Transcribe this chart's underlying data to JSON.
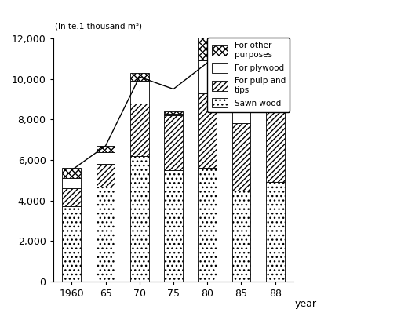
{
  "years": [
    "1960",
    "65",
    "70",
    "75",
    "80",
    "85",
    "88"
  ],
  "sawn_wood": [
    3700,
    4700,
    6200,
    5500,
    5600,
    4500,
    4900
  ],
  "pulp_and_tips": [
    900,
    1100,
    2600,
    2700,
    3700,
    3300,
    3700
  ],
  "plywood": [
    500,
    600,
    1100,
    100,
    1600,
    1100,
    1300
  ],
  "other": [
    500,
    300,
    400,
    100,
    1200,
    500,
    1200
  ],
  "line_values": [
    5500,
    6700,
    10100,
    9500,
    10800,
    9400,
    11100
  ],
  "ylim": [
    0,
    12000
  ],
  "yticks": [
    0,
    2000,
    4000,
    6000,
    8000,
    10000,
    12000
  ],
  "ylabel": "(In te.1 thousand m³)",
  "xlabel": "year",
  "bar_width": 0.55
}
